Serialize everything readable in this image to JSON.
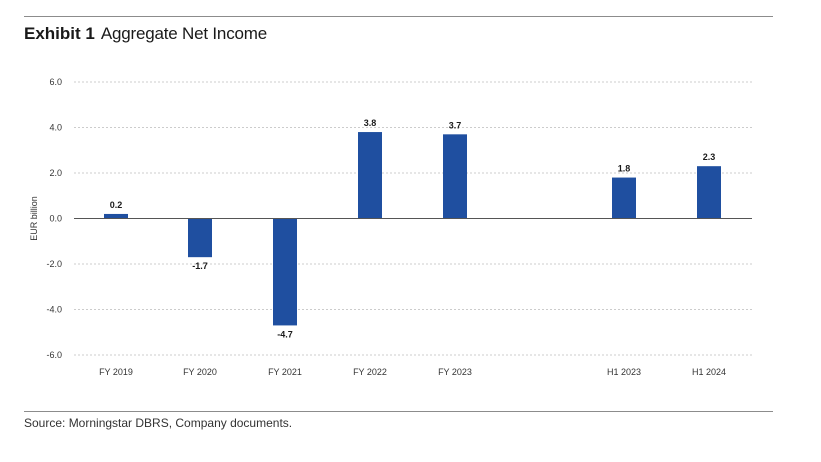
{
  "exhibit": {
    "label": "Exhibit 1",
    "title": "Aggregate Net Income",
    "source": "Source: Morningstar DBRS, Company documents."
  },
  "colors": {
    "bar": "#1f4fa0",
    "grid": "#cccccc",
    "axis": "#555555",
    "rule": "#8c8c8c"
  },
  "chart_data": {
    "type": "bar",
    "title": "Aggregate Net Income",
    "xlabel": "",
    "ylabel": "EUR billion",
    "categories": [
      "FY 2019",
      "FY 2020",
      "FY 2021",
      "FY 2022",
      "FY 2023",
      "H1 2023",
      "H1 2024"
    ],
    "values": [
      0.2,
      -1.7,
      -4.7,
      3.8,
      3.7,
      1.8,
      2.3
    ],
    "value_labels": [
      "0.2",
      "-1.7",
      "-4.7",
      "3.8",
      "3.7",
      "1.8",
      "2.3"
    ],
    "ylim": [
      -6,
      6
    ],
    "yticks": [
      6,
      4,
      2,
      0,
      -2,
      -4,
      -6
    ],
    "ytick_labels": [
      "6.0",
      "4.0",
      "2.0",
      "0.0",
      "-2.0",
      "-4.0",
      "-6.0"
    ],
    "grid": true,
    "legend": "none"
  }
}
